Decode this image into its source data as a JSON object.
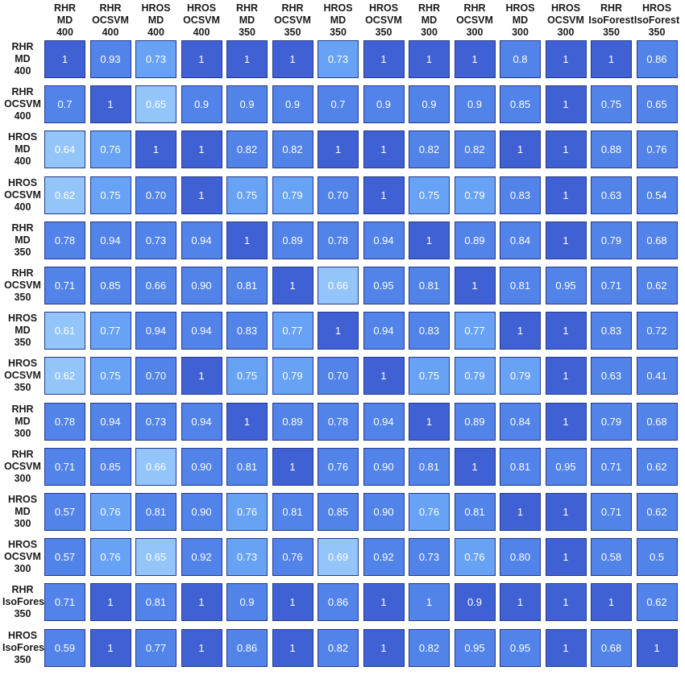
{
  "chart_data": {
    "type": "heatmap",
    "columns": [
      [
        "RHR",
        "MD",
        "400"
      ],
      [
        "RHR",
        "OCSVM",
        "400"
      ],
      [
        "HROS",
        "MD",
        "400"
      ],
      [
        "HROS",
        "OCSVM",
        "400"
      ],
      [
        "RHR",
        "MD",
        "350"
      ],
      [
        "RHR",
        "OCSVM",
        "350"
      ],
      [
        "HROS",
        "MD",
        "350"
      ],
      [
        "HROS",
        "OCSVM",
        "350"
      ],
      [
        "RHR",
        "MD",
        "300"
      ],
      [
        "RHR",
        "OCSVM",
        "300"
      ],
      [
        "HROS",
        "MD",
        "300"
      ],
      [
        "HROS",
        "OCSVM",
        "300"
      ],
      [
        "RHR",
        "IsoForest",
        "350"
      ],
      [
        "HROS",
        "IsoForest",
        "350"
      ]
    ],
    "rows": [
      [
        "RHR",
        "MD",
        "400"
      ],
      [
        "RHR",
        "OCSVM",
        "400"
      ],
      [
        "HROS",
        "MD",
        "400"
      ],
      [
        "HROS",
        "OCSVM",
        "400"
      ],
      [
        "RHR",
        "MD",
        "350"
      ],
      [
        "RHR",
        "OCSVM",
        "350"
      ],
      [
        "HROS",
        "MD",
        "350"
      ],
      [
        "HROS",
        "OCSVM",
        "350"
      ],
      [
        "RHR",
        "MD",
        "300"
      ],
      [
        "RHR",
        "OCSVM",
        "300"
      ],
      [
        "HROS",
        "MD",
        "300"
      ],
      [
        "HROS",
        "OCSVM",
        "300"
      ],
      [
        "RHR",
        "IsoForest",
        "350"
      ],
      [
        "HROS",
        "IsoForest",
        "350"
      ]
    ],
    "values": [
      [
        "1",
        "0.93",
        "0.73",
        "1",
        "1",
        "1",
        "0.73",
        "1",
        "1",
        "1",
        "0.8",
        "1",
        "1",
        "0.86"
      ],
      [
        "0.7",
        "1",
        "0.65",
        "0.9",
        "0.9",
        "0.9",
        "0.7",
        "0.9",
        "0.9",
        "0.9",
        "0.85",
        "1",
        "0.75",
        "0.65"
      ],
      [
        "0.64",
        "0.76",
        "1",
        "1",
        "0.82",
        "0.82",
        "1",
        "1",
        "0.82",
        "0.82",
        "1",
        "1",
        "0.88",
        "0.76"
      ],
      [
        "0.62",
        "0.75",
        "0.70",
        "1",
        "0.75",
        "0.79",
        "0.70",
        "1",
        "0.75",
        "0.79",
        "0.83",
        "1",
        "0.63",
        "0.54"
      ],
      [
        "0.78",
        "0.94",
        "0.73",
        "0.94",
        "1",
        "0.89",
        "0.78",
        "0.94",
        "1",
        "0.89",
        "0.84",
        "1",
        "0.79",
        "0.68"
      ],
      [
        "0.71",
        "0.85",
        "0.66",
        "0.90",
        "0.81",
        "1",
        "0.66",
        "0.95",
        "0.81",
        "1",
        "0.81",
        "0.95",
        "0.71",
        "0.62"
      ],
      [
        "0.61",
        "0.77",
        "0.94",
        "0.94",
        "0.83",
        "0.77",
        "1",
        "0.94",
        "0.83",
        "0.77",
        "1",
        "1",
        "0.83",
        "0.72"
      ],
      [
        "0.62",
        "0.75",
        "0.70",
        "1",
        "0.75",
        "0.79",
        "0.70",
        "1",
        "0.75",
        "0.79",
        "0.79",
        "1",
        "0.63",
        "0.41"
      ],
      [
        "0.78",
        "0.94",
        "0.73",
        "0.94",
        "1",
        "0.89",
        "0.78",
        "0.94",
        "1",
        "0.89",
        "0.84",
        "1",
        "0.79",
        "0.68"
      ],
      [
        "0.71",
        "0.85",
        "0.66",
        "0.90",
        "0.81",
        "1",
        "0.76",
        "0.90",
        "0.81",
        "1",
        "0.81",
        "0.95",
        "0.71",
        "0.62"
      ],
      [
        "0.57",
        "0.76",
        "0.81",
        "0.90",
        "0.76",
        "0.81",
        "0.85",
        "0.90",
        "0.76",
        "0.81",
        "1",
        "1",
        "0.71",
        "0.62"
      ],
      [
        "0.57",
        "0.76",
        "0.65",
        "0.92",
        "0.73",
        "0.76",
        "0.69",
        "0.92",
        "0.73",
        "0.76",
        "0.80",
        "1",
        "0.58",
        "0.5"
      ],
      [
        "0.71",
        "1",
        "0.81",
        "1",
        "0.9",
        "1",
        "0.86",
        "1",
        "1",
        "0.9",
        "1",
        "1",
        "1",
        "0.62"
      ],
      [
        "0.59",
        "1",
        "0.77",
        "1",
        "0.86",
        "1",
        "0.82",
        "1",
        "0.82",
        "0.95",
        "0.95",
        "1",
        "0.68",
        "1"
      ]
    ],
    "color_scale": [
      {
        "color": "#93c5fb",
        "level": "lightest"
      },
      {
        "color": "#67a2f5",
        "level": "light"
      },
      {
        "color": "#5283e9",
        "level": "medium"
      },
      {
        "color": "#3f61d4",
        "level": "darkest"
      }
    ],
    "cell_colors": [
      [
        3,
        2,
        1,
        3,
        3,
        3,
        1,
        3,
        3,
        3,
        2,
        3,
        3,
        2
      ],
      [
        2,
        3,
        0,
        2,
        2,
        2,
        2,
        2,
        2,
        2,
        2,
        3,
        2,
        2
      ],
      [
        0,
        1,
        3,
        3,
        2,
        2,
        3,
        3,
        2,
        2,
        3,
        3,
        2,
        2
      ],
      [
        0,
        1,
        2,
        3,
        1,
        1,
        2,
        3,
        1,
        1,
        2,
        3,
        2,
        2
      ],
      [
        2,
        2,
        2,
        2,
        3,
        2,
        2,
        2,
        3,
        2,
        2,
        3,
        2,
        2
      ],
      [
        2,
        2,
        2,
        2,
        2,
        3,
        0,
        2,
        2,
        3,
        2,
        2,
        2,
        2
      ],
      [
        0,
        1,
        2,
        2,
        2,
        1,
        3,
        2,
        2,
        1,
        3,
        3,
        2,
        2
      ],
      [
        0,
        1,
        2,
        3,
        1,
        1,
        2,
        3,
        1,
        1,
        1,
        3,
        2,
        2
      ],
      [
        2,
        2,
        2,
        2,
        3,
        2,
        2,
        2,
        3,
        2,
        2,
        3,
        2,
        2
      ],
      [
        2,
        2,
        0,
        2,
        2,
        3,
        2,
        2,
        2,
        3,
        2,
        2,
        2,
        2
      ],
      [
        2,
        1,
        2,
        2,
        1,
        2,
        2,
        2,
        1,
        2,
        3,
        3,
        2,
        2
      ],
      [
        2,
        1,
        0,
        2,
        1,
        2,
        0,
        2,
        2,
        1,
        2,
        3,
        2,
        2
      ],
      [
        2,
        3,
        2,
        3,
        2,
        3,
        2,
        3,
        2,
        3,
        3,
        3,
        3,
        2
      ],
      [
        2,
        3,
        2,
        3,
        2,
        3,
        2,
        3,
        2,
        2,
        2,
        3,
        2,
        3
      ]
    ]
  }
}
